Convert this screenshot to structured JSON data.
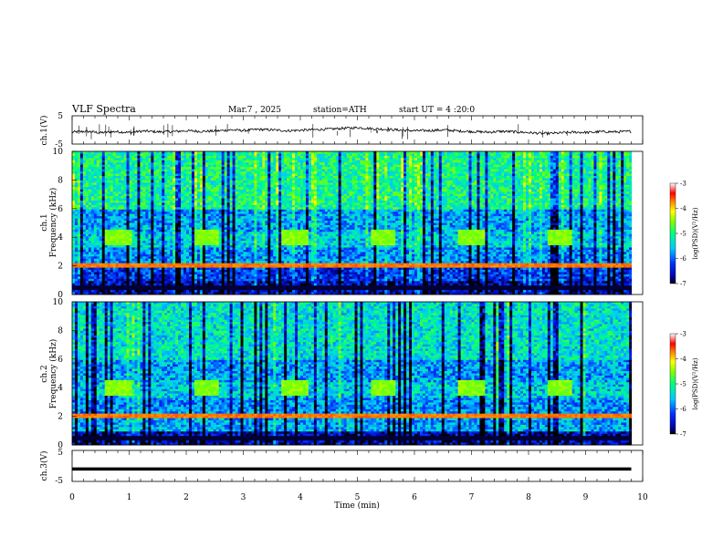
{
  "header": {
    "title": "VLF Spectra",
    "date": "Mar.7 , 2025",
    "station": "station=ATH",
    "start": "start UT = 4 :20:0"
  },
  "chart_data": [
    {
      "type": "line",
      "panel": "ch1-waveform",
      "ylabel": "ch.1(V)",
      "ylim": [
        -5,
        5
      ],
      "yticks": [
        5,
        -5
      ],
      "x_range": [
        0,
        9.8
      ],
      "series": [
        {
          "values": [
            -0.8,
            -0.5,
            -1.0,
            -0.6,
            -0.9,
            -0.4,
            -0.7,
            -0.6,
            -0.3,
            -0.5,
            -0.4,
            0.0,
            -0.2,
            0.2,
            0.0,
            -0.3,
            -0.1,
            0.1,
            0.3,
            0.6,
            0.8,
            0.4,
            0.2,
            -0.1,
            -0.3,
            -0.2,
            0.0,
            -0.4,
            -0.6,
            -0.8,
            -0.5,
            -0.7,
            -1.0,
            -1.3,
            -1.1,
            -0.8,
            -0.9,
            -0.6,
            -0.7,
            -0.5
          ]
        }
      ]
    },
    {
      "type": "heatmap",
      "panel": "ch1-spectrogram",
      "ylabel_line1": "ch.1",
      "ylabel_line2": "Frequency (kHz)",
      "ylim": [
        0,
        10
      ],
      "yticks": [
        10,
        8,
        6,
        4,
        2,
        0
      ],
      "colorbar": {
        "label": "log(PSD)(V²/Hz)",
        "range": [
          -7,
          -3
        ],
        "ticks": [
          -3,
          -4,
          -5,
          -6,
          -7
        ]
      }
    },
    {
      "type": "heatmap",
      "panel": "ch2-spectrogram",
      "ylabel_line1": "ch.2",
      "ylabel_line2": "Frequency (kHz)",
      "ylim": [
        0,
        10
      ],
      "yticks": [
        10,
        8,
        6,
        4,
        2,
        0
      ],
      "colorbar": {
        "label": "log(PSD)(V²/Hz)",
        "range": [
          -7,
          -3
        ],
        "ticks": [
          -3,
          -4,
          -5,
          -6,
          -7
        ]
      }
    },
    {
      "type": "line",
      "panel": "ch3-waveform",
      "ylabel": "ch.3(V)",
      "ylim": [
        -5,
        5
      ],
      "yticks": [
        5,
        -5
      ],
      "x_range": [
        0,
        9.8
      ],
      "series": [
        {
          "values": [
            -1.0,
            -1.0,
            -1.0,
            -1.0,
            -1.0,
            -1.0,
            -1.0,
            -1.0,
            -1.0,
            -1.0,
            -1.0,
            -1.0
          ]
        }
      ]
    }
  ],
  "xaxis": {
    "label": "Time (min)",
    "ticks": [
      0,
      1,
      2,
      3,
      4,
      5,
      6,
      7,
      8,
      9,
      10
    ],
    "range": [
      0,
      10
    ]
  }
}
